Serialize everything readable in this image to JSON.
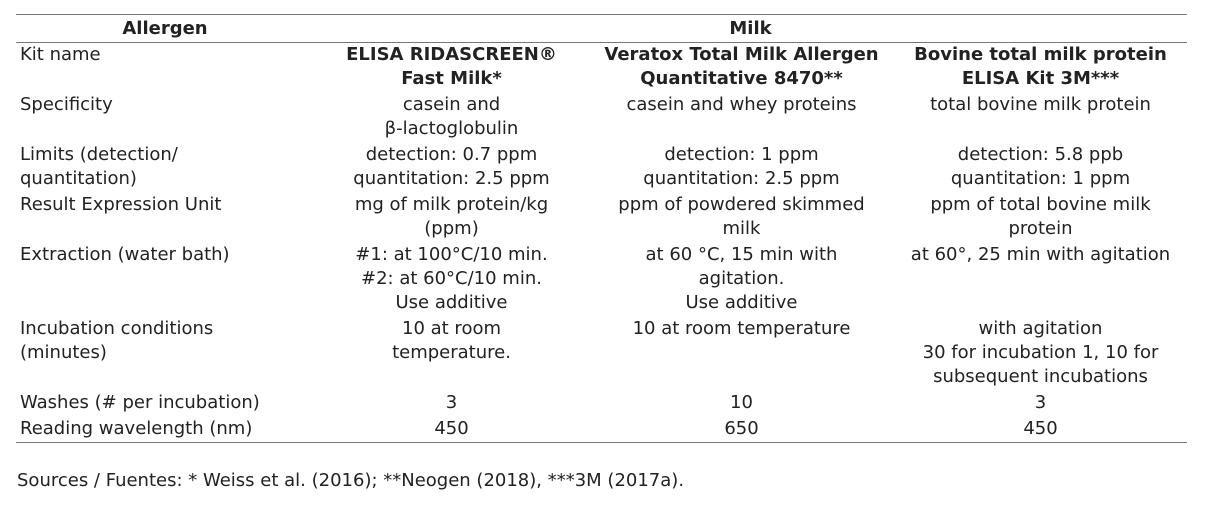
{
  "table": {
    "header": {
      "allergen": "Allergen",
      "milk": "Milk"
    },
    "rows": [
      {
        "label": "Kit name",
        "v1": "ELISA RIDASCREEN®\nFast Milk*",
        "v2": "Veratox Total Milk Allergen\nQuantitative 8470**",
        "v3": "Bovine total milk protein\nELISA Kit 3M***"
      },
      {
        "label": "Specificity",
        "v1": "casein and\nβ-lactoglobulin",
        "v2": "casein and whey proteins",
        "v3": "total bovine milk protein"
      },
      {
        "label": "Limits (detection/\nquantitation)",
        "v1": "detection: 0.7 ppm\nquantitation: 2.5 ppm",
        "v2": "detection: 1 ppm\nquantitation: 2.5 ppm",
        "v3": "detection: 5.8 ppb\nquantitation: 1 ppm"
      },
      {
        "label": "Result Expression Unit",
        "v1": "mg of milk protein/kg\n(ppm)",
        "v2": "ppm of powdered skimmed\nmilk",
        "v3": "ppm of total bovine milk\nprotein"
      },
      {
        "label": "Extraction (water bath)",
        "v1": "#1: at 100°C/10 min.\n#2: at 60°C/10 min.\nUse additive",
        "v2": "at 60 °C, 15 min with\nagitation.\nUse additive",
        "v3": "at 60°, 25 min with agitation"
      },
      {
        "label": "Incubation conditions\n(minutes)",
        "v1": "10 at room\ntemperature.",
        "v2": "10 at room temperature",
        "v3": "with agitation\n30 for incubation 1, 10 for\nsubsequent incubations"
      },
      {
        "label": "Washes (# per incubation)",
        "v1": "3",
        "v2": "10",
        "v3": "3"
      },
      {
        "label": "Reading wavelength (nm)",
        "v1": "450",
        "v2": "650",
        "v3": "450"
      }
    ]
  },
  "sources": "Sources / Fuentes: * Weiss et al. (2016); **Neogen (2018), ***3M (2017a)."
}
